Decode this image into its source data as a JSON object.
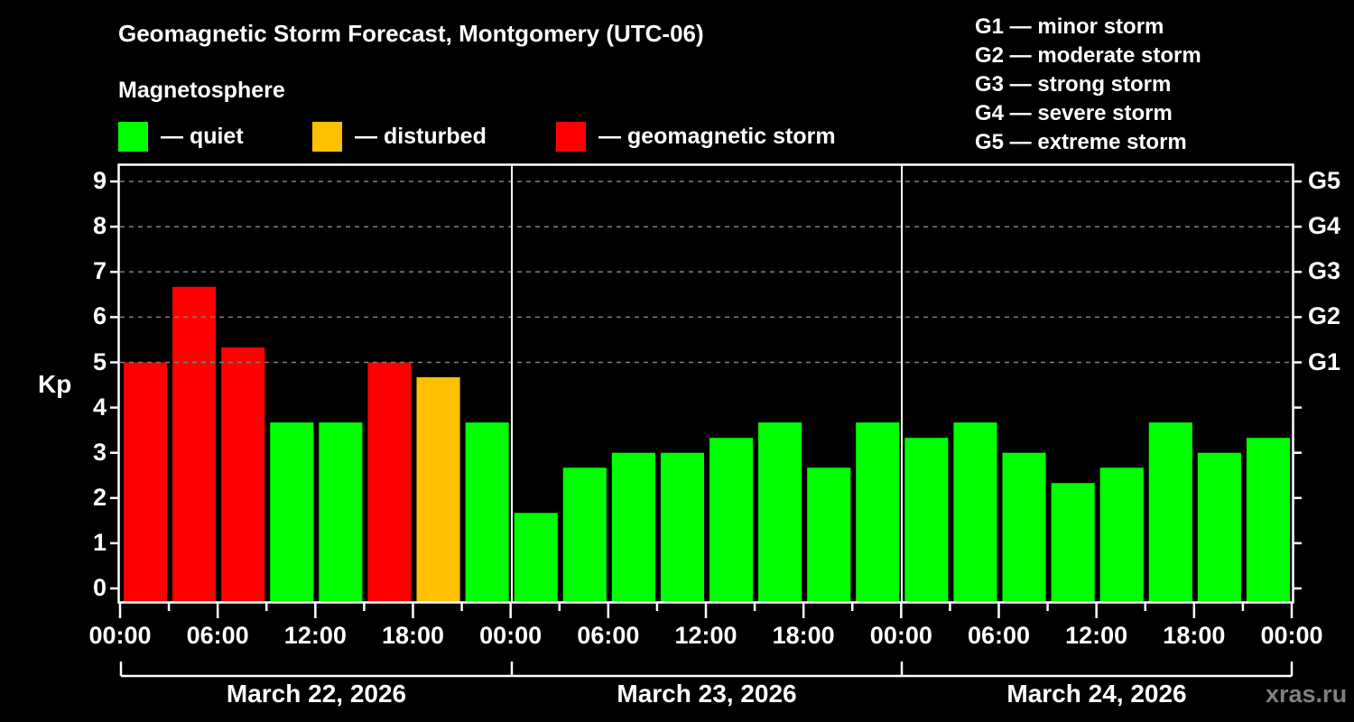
{
  "header": {
    "title": "Geomagnetic Storm Forecast, Montgomery (UTC-06)",
    "subtitle": "Magnetosphere"
  },
  "legend": [
    {
      "label": "— quiet",
      "color": "#00ff00"
    },
    {
      "label": "— disturbed",
      "color": "#ffc000"
    },
    {
      "label": "— geomagnetic storm",
      "color": "#ff0000"
    }
  ],
  "g_legend": [
    "G1 — minor storm",
    "G2 — moderate storm",
    "G3 — strong storm",
    "G4 — severe storm",
    "G5 — extreme storm"
  ],
  "axis": {
    "ylabel": "Kp",
    "yticks": [
      "0",
      "1",
      "2",
      "3",
      "4",
      "5",
      "6",
      "7",
      "8",
      "9"
    ],
    "gticks": [
      "G1",
      "G2",
      "G3",
      "G4",
      "G5"
    ],
    "xticks": [
      "00:00",
      "06:00",
      "12:00",
      "18:00",
      "00:00",
      "06:00",
      "12:00",
      "18:00",
      "00:00",
      "06:00",
      "12:00",
      "18:00",
      "00:00"
    ],
    "dates": [
      "March 22, 2026",
      "March 23, 2026",
      "March 24, 2026"
    ]
  },
  "watermark": "xras.ru",
  "colors": {
    "quiet": "#00ff00",
    "disturbed": "#ffc000",
    "storm": "#ff0000",
    "grid": "#808080"
  },
  "chart_data": {
    "type": "bar",
    "title": "Geomagnetic Storm Forecast, Montgomery (UTC-06)",
    "xlabel": "",
    "ylabel": "Kp",
    "ylim": [
      0,
      9
    ],
    "grid": "dashed horizontal at Kp 5-9",
    "legend_position": "top",
    "categories": [
      "Mar 22 00:00",
      "Mar 22 03:00",
      "Mar 22 06:00",
      "Mar 22 09:00",
      "Mar 22 12:00",
      "Mar 22 15:00",
      "Mar 22 18:00",
      "Mar 22 21:00",
      "Mar 23 00:00",
      "Mar 23 03:00",
      "Mar 23 06:00",
      "Mar 23 09:00",
      "Mar 23 12:00",
      "Mar 23 15:00",
      "Mar 23 18:00",
      "Mar 23 21:00",
      "Mar 24 00:00",
      "Mar 24 03:00",
      "Mar 24 06:00",
      "Mar 24 09:00",
      "Mar 24 12:00",
      "Mar 24 15:00",
      "Mar 24 18:00",
      "Mar 24 21:00"
    ],
    "values": [
      5.0,
      6.67,
      5.33,
      3.67,
      3.67,
      5.0,
      4.67,
      3.67,
      1.67,
      2.67,
      3.0,
      3.0,
      3.33,
      3.67,
      2.67,
      3.67,
      3.33,
      3.67,
      3.0,
      2.33,
      2.67,
      3.67,
      3.0,
      3.33
    ],
    "status": [
      "storm",
      "storm",
      "storm",
      "quiet",
      "quiet",
      "storm",
      "disturbed",
      "quiet",
      "quiet",
      "quiet",
      "quiet",
      "quiet",
      "quiet",
      "quiet",
      "quiet",
      "quiet",
      "quiet",
      "quiet",
      "quiet",
      "quiet",
      "quiet",
      "quiet",
      "quiet",
      "quiet"
    ],
    "right_axis": {
      "G1": 5,
      "G2": 6,
      "G3": 7,
      "G4": 8,
      "G5": 9
    }
  }
}
